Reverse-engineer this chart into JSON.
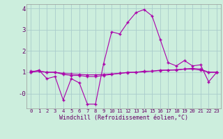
{
  "xlabel": "Windchill (Refroidissement éolien,°C)",
  "background_color": "#cceedd",
  "grid_color": "#aacccc",
  "line_color": "#aa00aa",
  "hours": [
    0,
    1,
    2,
    3,
    4,
    5,
    6,
    7,
    8,
    9,
    10,
    11,
    12,
    13,
    14,
    15,
    16,
    17,
    18,
    19,
    20,
    21,
    22,
    23
  ],
  "windchill": [
    1.0,
    1.1,
    0.7,
    0.8,
    -0.3,
    0.7,
    0.5,
    -0.5,
    -0.5,
    1.4,
    2.9,
    2.8,
    3.35,
    3.8,
    3.95,
    3.65,
    2.55,
    1.45,
    1.3,
    1.55,
    1.3,
    1.35,
    0.55,
    1.0
  ],
  "line2": [
    1.0,
    1.05,
    1.0,
    1.0,
    0.9,
    0.85,
    0.85,
    0.8,
    0.8,
    0.85,
    0.9,
    0.95,
    1.0,
    1.0,
    1.05,
    1.05,
    1.1,
    1.1,
    1.1,
    1.15,
    1.15,
    1.1,
    1.0,
    1.0
  ],
  "line3": [
    1.05,
    1.05,
    1.0,
    1.0,
    0.95,
    0.92,
    0.9,
    0.88,
    0.88,
    0.9,
    0.92,
    0.95,
    0.98,
    1.0,
    1.02,
    1.05,
    1.08,
    1.1,
    1.12,
    1.15,
    1.18,
    1.15,
    1.0,
    1.0
  ],
  "ylim": [
    -0.7,
    4.2
  ],
  "ytick_positions": [
    0,
    1,
    2,
    3,
    4
  ],
  "ytick_labels": [
    "-0",
    "1",
    "2",
    "3",
    "4"
  ]
}
